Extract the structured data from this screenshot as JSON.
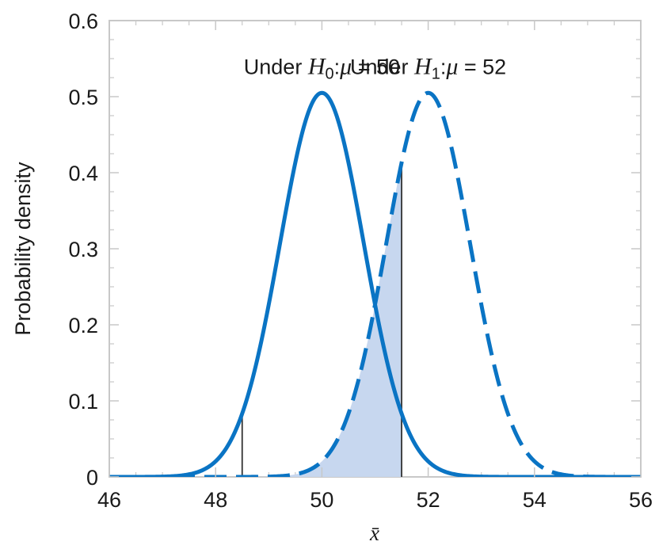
{
  "chart_data": {
    "type": "line",
    "title": "",
    "xlabel": "x̄",
    "ylabel": "Probability density",
    "xlim": [
      46,
      56
    ],
    "ylim": [
      0,
      0.6
    ],
    "x_ticks": [
      "46",
      "48",
      "50",
      "52",
      "54",
      "56"
    ],
    "y_ticks": [
      "0",
      "0.1",
      "0.2",
      "0.3",
      "0.4",
      "0.5",
      "0.6"
    ],
    "grid": false,
    "legend": "none",
    "series": [
      {
        "mean": 50,
        "sd": 0.79,
        "style": "solid",
        "color": "#0a74c4"
      },
      {
        "mean": 52,
        "sd": 0.79,
        "style": "dashed",
        "color": "#0a74c4"
      }
    ],
    "shaded_region": {
      "from": 48.5,
      "to": 51.5,
      "under_series": 1,
      "color": "#c7d7ef"
    },
    "critical_lines": [
      48.5,
      51.5
    ],
    "annotations": [
      {
        "prefix": "Under ",
        "var": "H",
        "sub": "0",
        "colon": ":",
        "param": "μ",
        "eq": " = 50",
        "x": 50,
        "y": 0.54
      },
      {
        "prefix": "Under ",
        "var": "H",
        "sub": "1",
        "colon": ":",
        "param": "μ",
        "eq": " = 52",
        "x": 52,
        "y": 0.54
      }
    ]
  }
}
